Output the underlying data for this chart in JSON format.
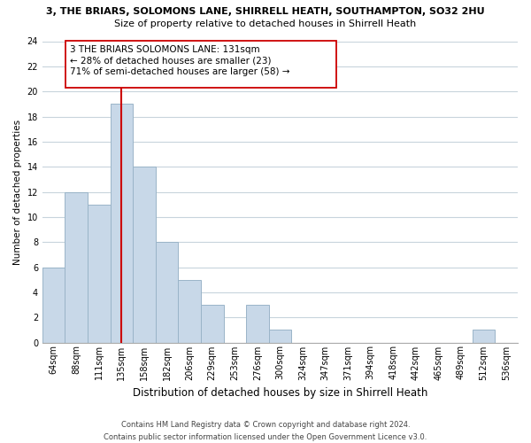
{
  "title1": "3, THE BRIARS, SOLOMONS LANE, SHIRRELL HEATH, SOUTHAMPTON, SO32 2HU",
  "title2": "Size of property relative to detached houses in Shirrell Heath",
  "xlabel": "Distribution of detached houses by size in Shirrell Heath",
  "ylabel": "Number of detached properties",
  "bar_labels": [
    "64sqm",
    "88sqm",
    "111sqm",
    "135sqm",
    "158sqm",
    "182sqm",
    "206sqm",
    "229sqm",
    "253sqm",
    "276sqm",
    "300sqm",
    "324sqm",
    "347sqm",
    "371sqm",
    "394sqm",
    "418sqm",
    "442sqm",
    "465sqm",
    "489sqm",
    "512sqm",
    "536sqm"
  ],
  "bar_values": [
    6,
    12,
    11,
    19,
    14,
    8,
    5,
    3,
    0,
    3,
    1,
    0,
    0,
    0,
    0,
    0,
    0,
    0,
    0,
    1,
    0
  ],
  "bar_color": "#c8d8e8",
  "bar_edge_color": "#9ab4c8",
  "vline_x_index": 3,
  "vline_color": "#cc0000",
  "ylim": [
    0,
    24
  ],
  "yticks": [
    0,
    2,
    4,
    6,
    8,
    10,
    12,
    14,
    16,
    18,
    20,
    22,
    24
  ],
  "annotation_line1": "3 THE BRIARS SOLOMONS LANE: 131sqm",
  "annotation_line2": "← 28% of detached houses are smaller (23)",
  "annotation_line3": "71% of semi-detached houses are larger (58) →",
  "footer1": "Contains HM Land Registry data © Crown copyright and database right 2024.",
  "footer2": "Contains public sector information licensed under the Open Government Licence v3.0.",
  "bg_color": "#ffffff",
  "grid_color": "#c8d4dc",
  "box_edge_color": "#cc0000",
  "annotation_fontsize": 7.5,
  "title1_fontsize": 8.0,
  "title2_fontsize": 8.0,
  "ylabel_fontsize": 7.5,
  "xlabel_fontsize": 8.5,
  "tick_fontsize": 7.0,
  "footer_fontsize": 6.0
}
